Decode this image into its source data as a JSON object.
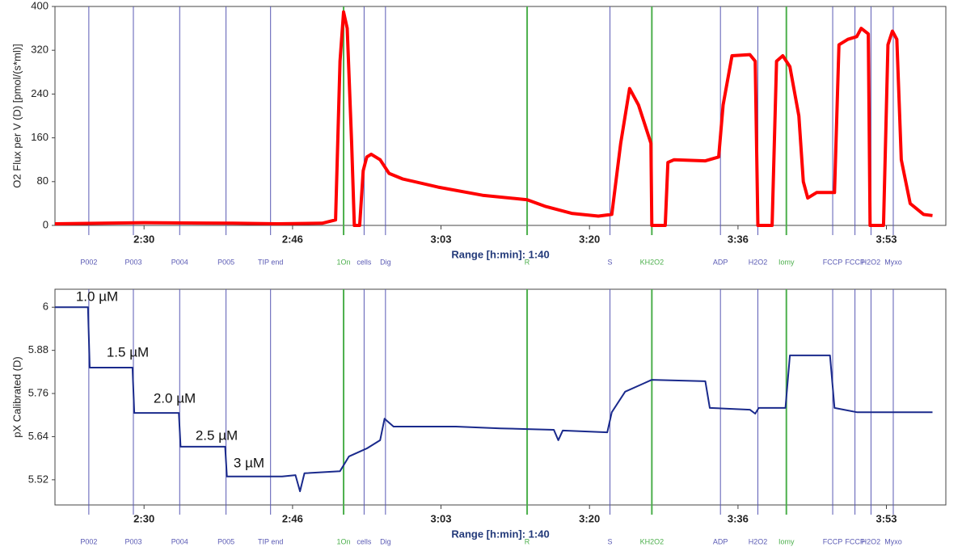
{
  "chart_data": [
    {
      "type": "line",
      "y_label": "O2 Flux per V (D) [pmol/(s*ml)]",
      "x_label": "Range [h:min]: 1:40",
      "xlim": [
        140,
        240
      ],
      "xticks": [
        {
          "value": 150,
          "label": "2:30"
        },
        {
          "value": 166.67,
          "label": "2:46"
        },
        {
          "value": 183.33,
          "label": "3:03"
        },
        {
          "value": 200,
          "label": "3:20"
        },
        {
          "value": 216.67,
          "label": "3:36"
        },
        {
          "value": 233.33,
          "label": "3:53"
        }
      ],
      "ylim": [
        0,
        400
      ],
      "yticks": [
        0,
        80,
        160,
        240,
        320,
        400
      ],
      "series": [
        {
          "color": "#ff0000",
          "width": 4,
          "x": [
            140,
            150,
            160,
            165,
            170,
            171.5,
            172,
            172.4,
            172.8,
            173.3,
            173.6,
            174.2,
            174.6,
            175,
            175.5,
            176.5,
            177.5,
            179,
            183,
            188,
            193,
            195,
            198,
            201,
            202.5,
            203.5,
            204.5,
            205.5,
            206.5,
            206.9,
            207,
            208.5,
            208.8,
            209.5,
            213,
            214.5,
            215,
            216,
            218,
            218.6,
            218.9,
            220.5,
            221,
            221.7,
            222.5,
            223.5,
            224,
            224.5,
            225.5,
            227.5,
            228,
            229,
            230,
            230.5,
            231.3,
            231.5,
            233,
            233.5,
            234,
            234.5,
            235,
            236,
            237.5,
            238.5
          ],
          "values": [
            3,
            5,
            4,
            3,
            4,
            10,
            300,
            390,
            360,
            150,
            0,
            0,
            100,
            125,
            130,
            120,
            95,
            85,
            70,
            55,
            47,
            35,
            22,
            17,
            20,
            150,
            250,
            220,
            170,
            150,
            0,
            0,
            115,
            120,
            118,
            125,
            220,
            310,
            312,
            300,
            0,
            0,
            300,
            310,
            290,
            200,
            80,
            50,
            60,
            60,
            330,
            340,
            345,
            360,
            350,
            0,
            0,
            330,
            355,
            340,
            120,
            40,
            20,
            18
          ]
        }
      ],
      "events": [
        {
          "x": 143.8,
          "label": "P002",
          "color": "#5a5ab4"
        },
        {
          "x": 148.8,
          "label": "P003",
          "color": "#5a5ab4"
        },
        {
          "x": 154.0,
          "label": "P004",
          "color": "#5a5ab4"
        },
        {
          "x": 159.2,
          "label": "P005",
          "color": "#5a5ab4"
        },
        {
          "x": 164.2,
          "label": "TIP end",
          "color": "#5a5ab4"
        },
        {
          "x": 172.4,
          "label": "1On",
          "color": "#4caf4c"
        },
        {
          "x": 174.7,
          "label": "cells",
          "color": "#5a5ab4"
        },
        {
          "x": 177.1,
          "label": "Dig",
          "color": "#5a5ab4"
        },
        {
          "x": 193.0,
          "label": "R",
          "color": "#4caf4c"
        },
        {
          "x": 202.3,
          "label": "S",
          "color": "#5a5ab4"
        },
        {
          "x": 207.0,
          "label": "KH2O2",
          "color": "#4caf4c"
        },
        {
          "x": 214.7,
          "label": "ADP",
          "color": "#5a5ab4"
        },
        {
          "x": 218.9,
          "label": "H2O2",
          "color": "#5a5ab4"
        },
        {
          "x": 222.1,
          "label": "Iomy",
          "color": "#4caf4c"
        },
        {
          "x": 227.3,
          "label": "FCCP",
          "color": "#5a5ab4"
        },
        {
          "x": 229.8,
          "label": "FCCP",
          "color": "#5a5ab4"
        },
        {
          "x": 231.6,
          "label": "H2O2",
          "color": "#5a5ab4"
        },
        {
          "x": 234.1,
          "label": "Myxo",
          "color": "#5a5ab4"
        }
      ]
    },
    {
      "type": "line",
      "y_label": "pX Calibrated (D)",
      "x_label": "Range [h:min]: 1:40",
      "xlim": [
        140,
        240
      ],
      "xticks": [
        {
          "value": 150,
          "label": "2:30"
        },
        {
          "value": 166.67,
          "label": "2:46"
        },
        {
          "value": 183.33,
          "label": "3:03"
        },
        {
          "value": 200,
          "label": "3:20"
        },
        {
          "value": 216.67,
          "label": "3:36"
        },
        {
          "value": 233.33,
          "label": "3:53"
        }
      ],
      "ylim": [
        5.45,
        6.05
      ],
      "yticks": [
        5.52,
        5.64,
        5.76,
        5.88,
        6
      ],
      "annotations": [
        "1.0 µM",
        "1.5 µM",
        "2.0 µM",
        "2.5 µM",
        "3 µM"
      ],
      "series": [
        {
          "color": "#1a2a8c",
          "width": 2,
          "x": [
            140,
            143.7,
            143.9,
            148.7,
            148.9,
            153.9,
            154.1,
            159.1,
            159.3,
            165.5,
            167,
            167.5,
            168,
            172,
            173,
            175,
            176.5,
            177,
            178,
            185,
            190,
            193,
            196,
            196.5,
            197,
            202,
            202.5,
            204,
            206,
            207,
            213,
            213.5,
            218,
            218.6,
            219,
            222,
            222.5,
            227,
            227.5,
            230,
            238.5
          ],
          "values": [
            6.0,
            6.0,
            5.832,
            5.832,
            5.706,
            5.706,
            5.612,
            5.612,
            5.529,
            5.529,
            5.533,
            5.488,
            5.538,
            5.544,
            5.585,
            5.607,
            5.63,
            5.69,
            5.668,
            5.668,
            5.663,
            5.661,
            5.659,
            5.63,
            5.657,
            5.652,
            5.708,
            5.765,
            5.787,
            5.798,
            5.794,
            5.72,
            5.715,
            5.704,
            5.72,
            5.72,
            5.866,
            5.866,
            5.72,
            5.708,
            5.708
          ]
        }
      ],
      "events": [
        {
          "x": 143.8,
          "label": "P002",
          "color": "#5a5ab4"
        },
        {
          "x": 148.8,
          "label": "P003",
          "color": "#5a5ab4"
        },
        {
          "x": 154.0,
          "label": "P004",
          "color": "#5a5ab4"
        },
        {
          "x": 159.2,
          "label": "P005",
          "color": "#5a5ab4"
        },
        {
          "x": 164.2,
          "label": "TIP end",
          "color": "#5a5ab4"
        },
        {
          "x": 172.4,
          "label": "1On",
          "color": "#4caf4c"
        },
        {
          "x": 174.7,
          "label": "cells",
          "color": "#5a5ab4"
        },
        {
          "x": 177.1,
          "label": "Dig",
          "color": "#5a5ab4"
        },
        {
          "x": 193.0,
          "label": "R",
          "color": "#4caf4c"
        },
        {
          "x": 202.3,
          "label": "S",
          "color": "#5a5ab4"
        },
        {
          "x": 207.0,
          "label": "KH2O2",
          "color": "#4caf4c"
        },
        {
          "x": 214.7,
          "label": "ADP",
          "color": "#5a5ab4"
        },
        {
          "x": 218.9,
          "label": "H2O2",
          "color": "#5a5ab4"
        },
        {
          "x": 222.1,
          "label": "Iomy",
          "color": "#4caf4c"
        },
        {
          "x": 227.3,
          "label": "FCCP",
          "color": "#5a5ab4"
        },
        {
          "x": 229.8,
          "label": "FCCP",
          "color": "#5a5ab4"
        },
        {
          "x": 231.6,
          "label": "H2O2",
          "color": "#5a5ab4"
        },
        {
          "x": 234.1,
          "label": "Myxo",
          "color": "#5a5ab4"
        }
      ]
    }
  ]
}
